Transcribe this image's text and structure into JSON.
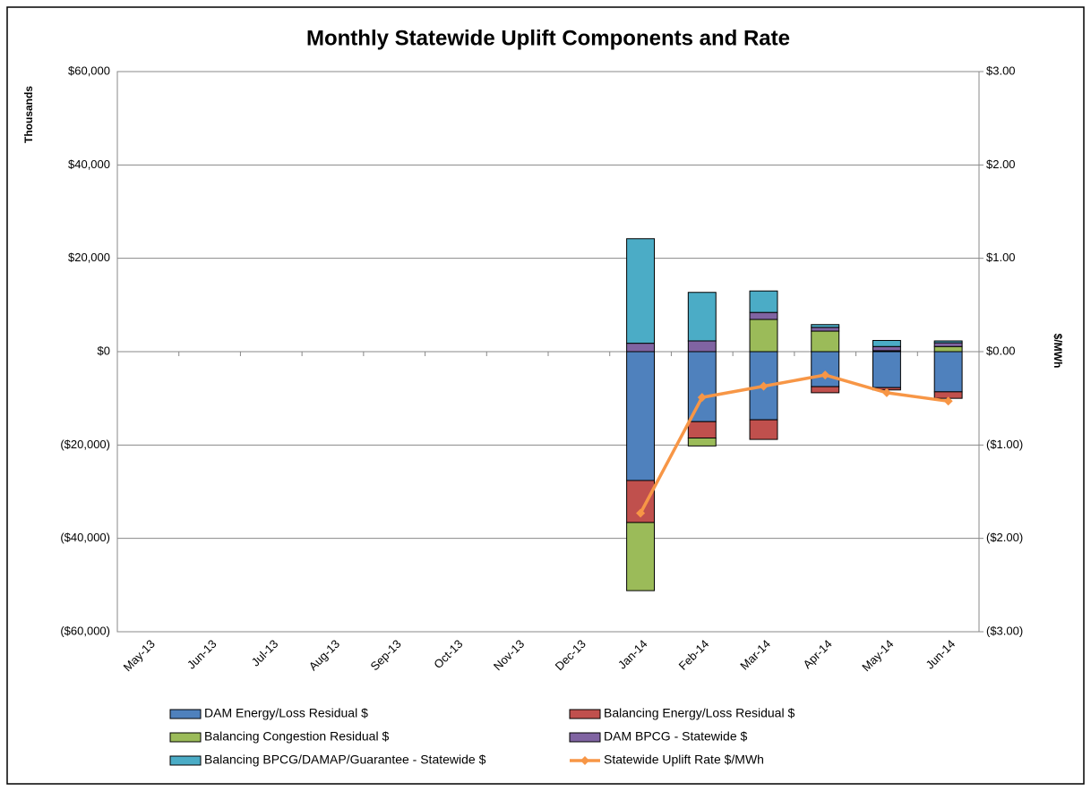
{
  "chart_data": {
    "type": "bar",
    "stacked": true,
    "title": "Monthly Statewide Uplift Components and Rate",
    "y_label": "Thousands",
    "y2_label": "$/MWh",
    "categories": [
      "May-13",
      "Jun-13",
      "Jul-13",
      "Aug-13",
      "Sep-13",
      "Oct-13",
      "Nov-13",
      "Dec-13",
      "Jan-14",
      "Feb-14",
      "Mar-14",
      "Apr-14",
      "May-14",
      "Jun-14"
    ],
    "series": [
      {
        "name": "DAM Energy/Loss Residual $",
        "color": "#4f81bd",
        "values": [
          null,
          null,
          null,
          null,
          null,
          null,
          null,
          null,
          -27600,
          -15000,
          -14600,
          -7500,
          -7700,
          -8600
        ]
      },
      {
        "name": "Balancing Energy/Loss Residual $",
        "color": "#c0504d",
        "values": [
          null,
          null,
          null,
          null,
          null,
          null,
          null,
          null,
          -9000,
          -3500,
          -4200,
          -1300,
          -500,
          -1400
        ]
      },
      {
        "name": "Balancing Congestion Residual $",
        "color": "#9bbb59",
        "values": [
          null,
          null,
          null,
          null,
          null,
          null,
          null,
          null,
          -14600,
          -1700,
          6900,
          4400,
          200,
          1100
        ]
      },
      {
        "name": "DAM BPCG - Statewide $",
        "color": "#8064a2",
        "values": [
          null,
          null,
          null,
          null,
          null,
          null,
          null,
          null,
          1800,
          2300,
          1500,
          800,
          900,
          800
        ]
      },
      {
        "name": "Balancing BPCG/DAMAP/Guarantee  - Statewide $",
        "color": "#4bacc6",
        "values": [
          null,
          null,
          null,
          null,
          null,
          null,
          null,
          null,
          22400,
          10400,
          4600,
          600,
          1300,
          400
        ]
      },
      {
        "name": "Statewide Uplift Rate $/MWh",
        "color": "#f79646",
        "type": "line",
        "axis": "y2",
        "values": [
          null,
          null,
          null,
          null,
          null,
          null,
          null,
          null,
          -1.73,
          -0.49,
          -0.37,
          -0.25,
          -0.44,
          -0.53
        ]
      }
    ],
    "ylim": [
      -60000,
      60000
    ],
    "yticks": [
      {
        "value": -60000,
        "label": "($60,000)"
      },
      {
        "value": -40000,
        "label": "($40,000)"
      },
      {
        "value": -20000,
        "label": "($20,000)"
      },
      {
        "value": 0,
        "label": "$0"
      },
      {
        "value": 20000,
        "label": "$20,000"
      },
      {
        "value": 40000,
        "label": "$40,000"
      },
      {
        "value": 60000,
        "label": "$60,000"
      }
    ],
    "y2lim": [
      -3,
      3
    ],
    "y2ticks": [
      {
        "value": -3,
        "label": "($3.00)"
      },
      {
        "value": -2,
        "label": "($2.00)"
      },
      {
        "value": -1,
        "label": "($1.00)"
      },
      {
        "value": 0,
        "label": "$0.00"
      },
      {
        "value": 1,
        "label": "$1.00"
      },
      {
        "value": 2,
        "label": "$2.00"
      },
      {
        "value": 3,
        "label": "$3.00"
      }
    ],
    "negative_tick_color": "#ff0000",
    "grid": true,
    "legend": "bottom"
  }
}
